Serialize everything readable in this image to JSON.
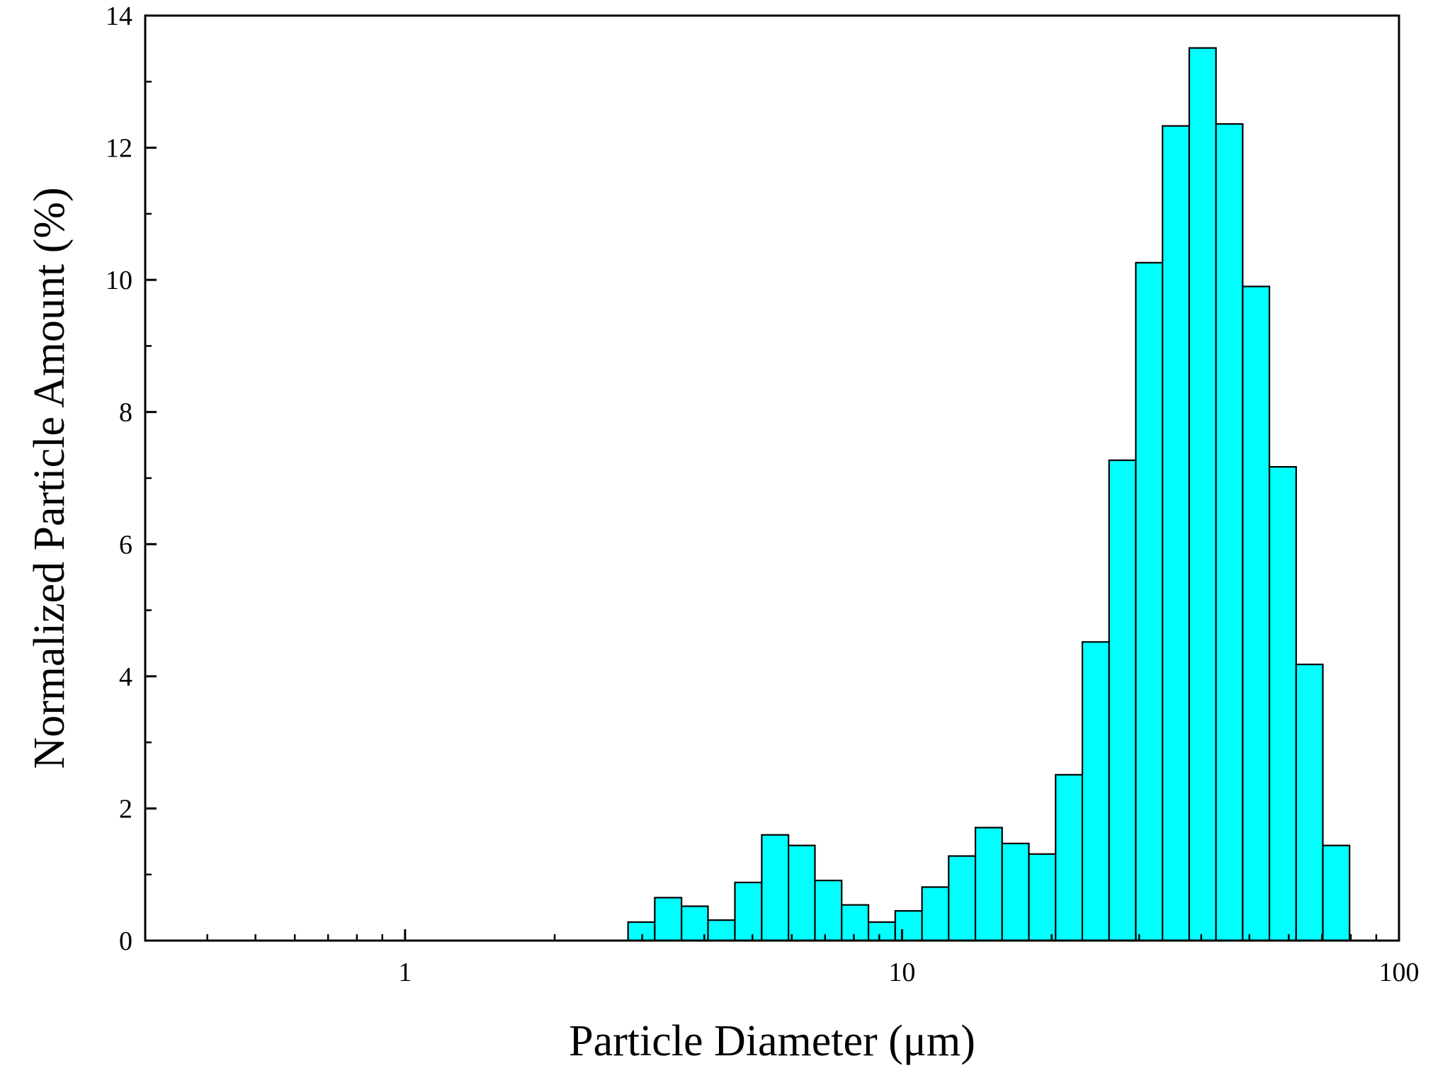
{
  "chart_data": {
    "type": "bar",
    "title": "",
    "xlabel": "Particle Diameter (μm)",
    "ylabel": "Normalized Particle Amount (%)",
    "xscale": "log",
    "xlim": [
      0.3,
      100
    ],
    "ylim": [
      0,
      14
    ],
    "grid": false,
    "legend": "none",
    "bar_color": "#00FFFF",
    "edge_color": "#000000",
    "x_ticks": [
      {
        "value": 1,
        "label": "1"
      },
      {
        "value": 10,
        "label": "10"
      },
      {
        "value": 100,
        "label": "100"
      }
    ],
    "y_ticks": [
      {
        "value": 0,
        "label": "0"
      },
      {
        "value": 2,
        "label": "2"
      },
      {
        "value": 4,
        "label": "4"
      },
      {
        "value": 6,
        "label": "6"
      },
      {
        "value": 8,
        "label": "8"
      },
      {
        "value": 10,
        "label": "10"
      },
      {
        "value": 12,
        "label": "12"
      },
      {
        "value": 14,
        "label": "14"
      }
    ],
    "bins": [
      {
        "start": 2.81,
        "end": 3.18,
        "value": 0.28
      },
      {
        "start": 3.18,
        "end": 3.6,
        "value": 0.65
      },
      {
        "start": 3.6,
        "end": 4.07,
        "value": 0.52
      },
      {
        "start": 4.07,
        "end": 4.61,
        "value": 0.31
      },
      {
        "start": 4.61,
        "end": 5.22,
        "value": 0.88
      },
      {
        "start": 5.22,
        "end": 5.91,
        "value": 1.6
      },
      {
        "start": 5.91,
        "end": 6.68,
        "value": 1.44
      },
      {
        "start": 6.68,
        "end": 7.56,
        "value": 0.91
      },
      {
        "start": 7.56,
        "end": 8.56,
        "value": 0.54
      },
      {
        "start": 8.56,
        "end": 9.69,
        "value": 0.28
      },
      {
        "start": 9.69,
        "end": 10.97,
        "value": 0.45
      },
      {
        "start": 10.97,
        "end": 12.41,
        "value": 0.81
      },
      {
        "start": 12.41,
        "end": 14.05,
        "value": 1.28
      },
      {
        "start": 14.05,
        "end": 15.9,
        "value": 1.71
      },
      {
        "start": 15.9,
        "end": 18.0,
        "value": 1.47
      },
      {
        "start": 18.0,
        "end": 20.37,
        "value": 1.31
      },
      {
        "start": 20.37,
        "end": 23.06,
        "value": 2.51
      },
      {
        "start": 23.06,
        "end": 26.1,
        "value": 4.52
      },
      {
        "start": 26.1,
        "end": 29.54,
        "value": 7.27
      },
      {
        "start": 29.54,
        "end": 33.43,
        "value": 10.26
      },
      {
        "start": 33.43,
        "end": 37.84,
        "value": 12.33
      },
      {
        "start": 37.84,
        "end": 42.83,
        "value": 13.51
      },
      {
        "start": 42.83,
        "end": 48.47,
        "value": 12.36
      },
      {
        "start": 48.47,
        "end": 54.86,
        "value": 9.9
      },
      {
        "start": 54.86,
        "end": 62.09,
        "value": 7.17
      },
      {
        "start": 62.09,
        "end": 70.27,
        "value": 4.18
      },
      {
        "start": 70.27,
        "end": 79.53,
        "value": 1.44
      }
    ]
  }
}
